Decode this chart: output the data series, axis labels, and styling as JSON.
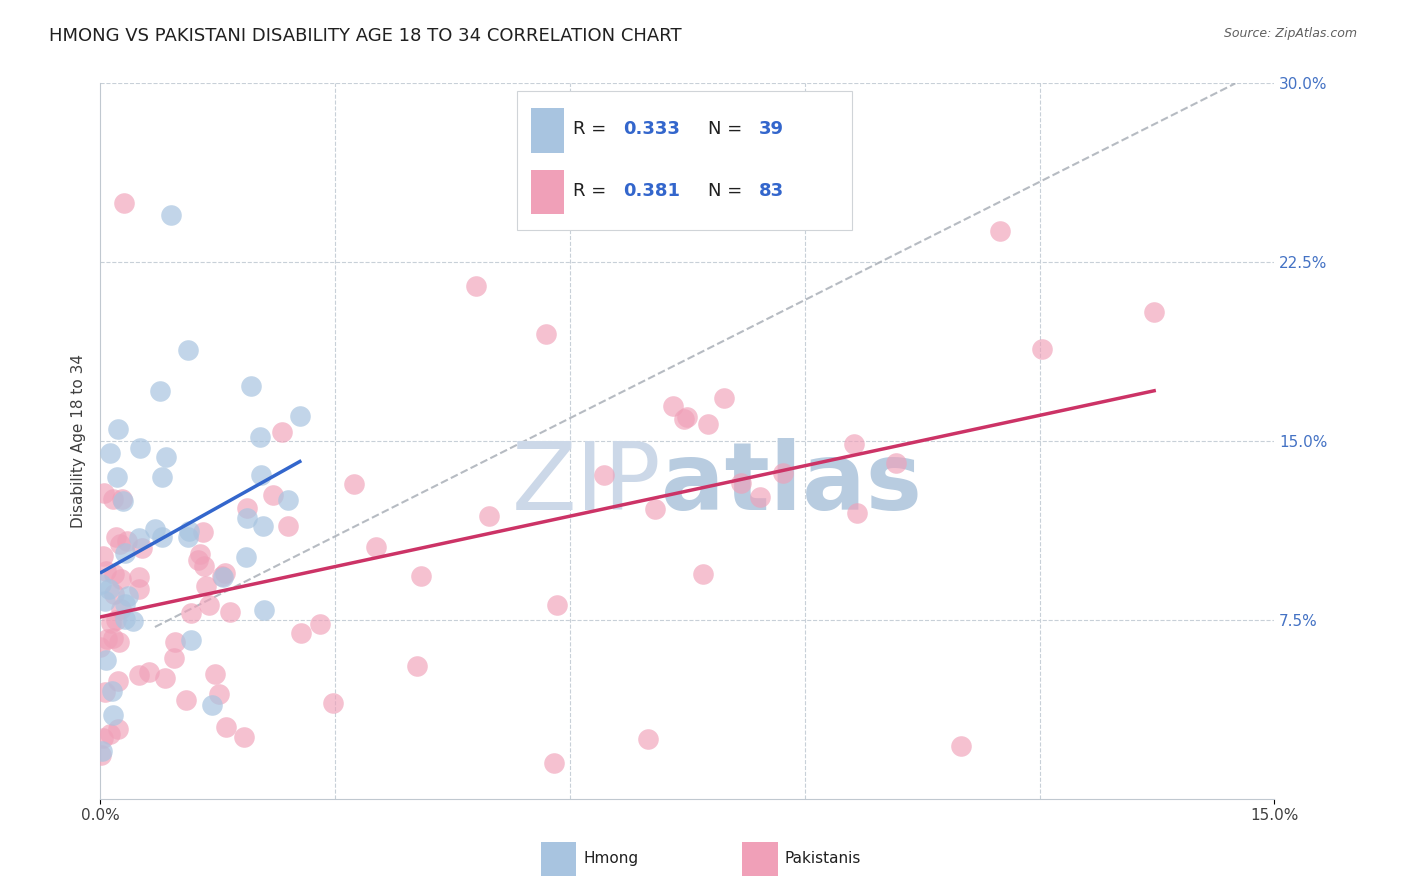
{
  "title": "HMONG VS PAKISTANI DISABILITY AGE 18 TO 34 CORRELATION CHART",
  "source": "Source: ZipAtlas.com",
  "ylabel": "Disability Age 18 to 34",
  "xlim": [
    0.0,
    0.15
  ],
  "ylim": [
    0.0,
    0.3
  ],
  "hmong_R": 0.333,
  "hmong_N": 39,
  "pakistani_R": 0.381,
  "pakistani_N": 83,
  "hmong_color": "#a8c4e0",
  "hmong_line_color": "#3366cc",
  "pakistani_color": "#f0a0b8",
  "pakistani_line_color": "#cc3366",
  "watermark_zip_color": "#ccd8e8",
  "watermark_atlas_color": "#b8cce0",
  "legend_text_color": "#3366cc",
  "background_color": "#ffffff",
  "grid_color": "#c8d0d8",
  "title_fontsize": 13,
  "axis_label_fontsize": 11,
  "tick_fontsize": 11,
  "legend_fontsize": 13
}
